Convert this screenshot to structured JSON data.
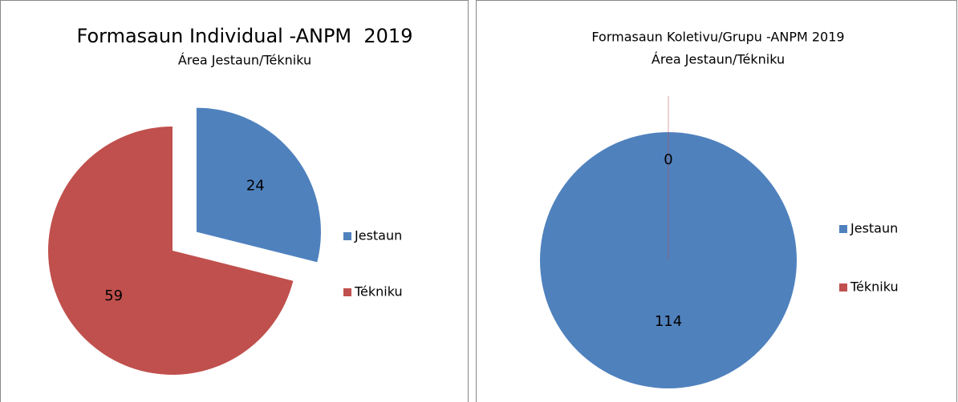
{
  "chart_data": [
    {
      "type": "pie",
      "title": "Formasaun Individual -ANPM  2019",
      "subtitle": "Área Jestaun/Tékniku",
      "categories": [
        "Jestaun",
        "Tékniku"
      ],
      "values": [
        24,
        59
      ],
      "colors": [
        "#4f81bd",
        "#c0504d"
      ],
      "legend": "right"
    },
    {
      "type": "pie",
      "title": "Formasaun Koletivu/Grupu -ANPM 2019",
      "subtitle": "Área Jestaun/Tékniku",
      "categories": [
        "Jestaun",
        "Tékniku"
      ],
      "values": [
        114,
        0
      ],
      "colors": [
        "#4f81bd",
        "#c0504d"
      ],
      "legend": "right"
    }
  ]
}
